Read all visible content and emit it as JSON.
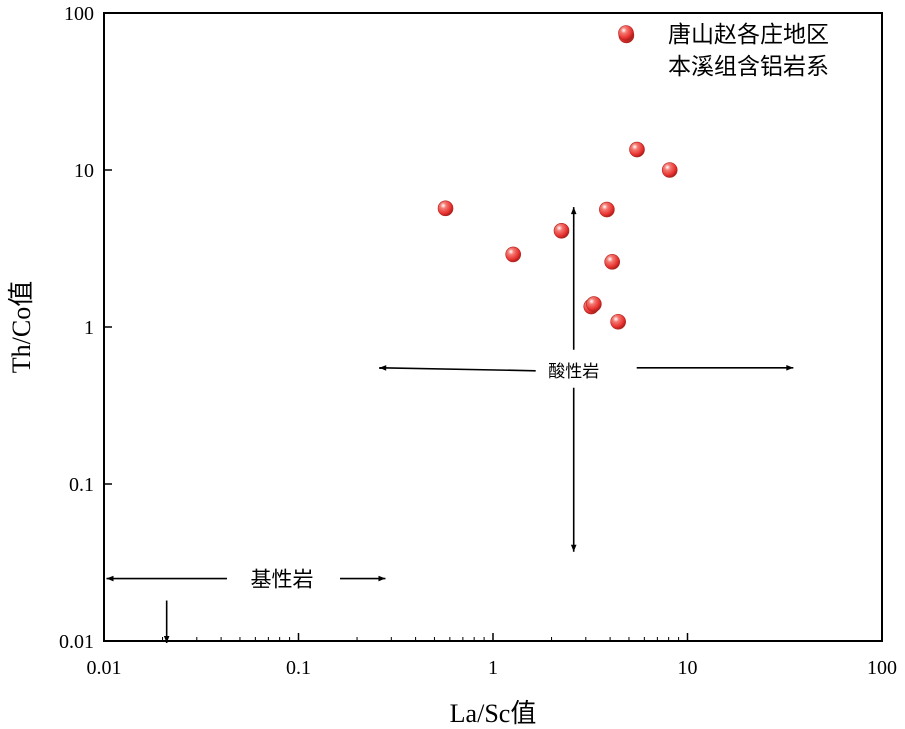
{
  "chart_data": {
    "type": "scatter",
    "title": "",
    "xlabel": "La/Sc值",
    "ylabel": "Th/Co值",
    "xscale": "log",
    "yscale": "log",
    "xlim": [
      0.01,
      100
    ],
    "ylim": [
      0.01,
      100
    ],
    "x_ticks": [
      "0.01",
      "0.1",
      "1",
      "10",
      "100"
    ],
    "y_ticks": [
      "0.01",
      "0.1",
      "1",
      "10",
      "100"
    ],
    "grid": false,
    "legend_position": "top-right",
    "series": [
      {
        "name": "唐山赵各庄地区本溪组含铝岩系",
        "legend_lines": [
          "唐山赵各庄地区",
          "本溪组含铝岩系"
        ],
        "color": "#e8312f",
        "points": [
          {
            "x": 0.57,
            "y": 5.7
          },
          {
            "x": 1.27,
            "y": 2.9
          },
          {
            "x": 2.25,
            "y": 4.1
          },
          {
            "x": 3.2,
            "y": 1.35
          },
          {
            "x": 3.3,
            "y": 1.4
          },
          {
            "x": 3.85,
            "y": 5.6
          },
          {
            "x": 4.1,
            "y": 2.6
          },
          {
            "x": 4.4,
            "y": 1.08
          },
          {
            "x": 5.5,
            "y": 13.5
          },
          {
            "x": 8.1,
            "y": 10.0
          },
          {
            "x": 4.85,
            "y": 72
          }
        ]
      }
    ],
    "annotations": [
      {
        "text": "酸性岩",
        "x_range": [
          0.26,
          35
        ],
        "y_range": [
          0.037,
          5.8
        ],
        "center": [
          2.6,
          0.55
        ]
      },
      {
        "text": "基性岩",
        "x_range": [
          0.0103,
          0.28
        ],
        "y_range": [
          0.01,
          0.025
        ],
        "center": [
          0.021,
          0.025
        ]
      }
    ]
  }
}
